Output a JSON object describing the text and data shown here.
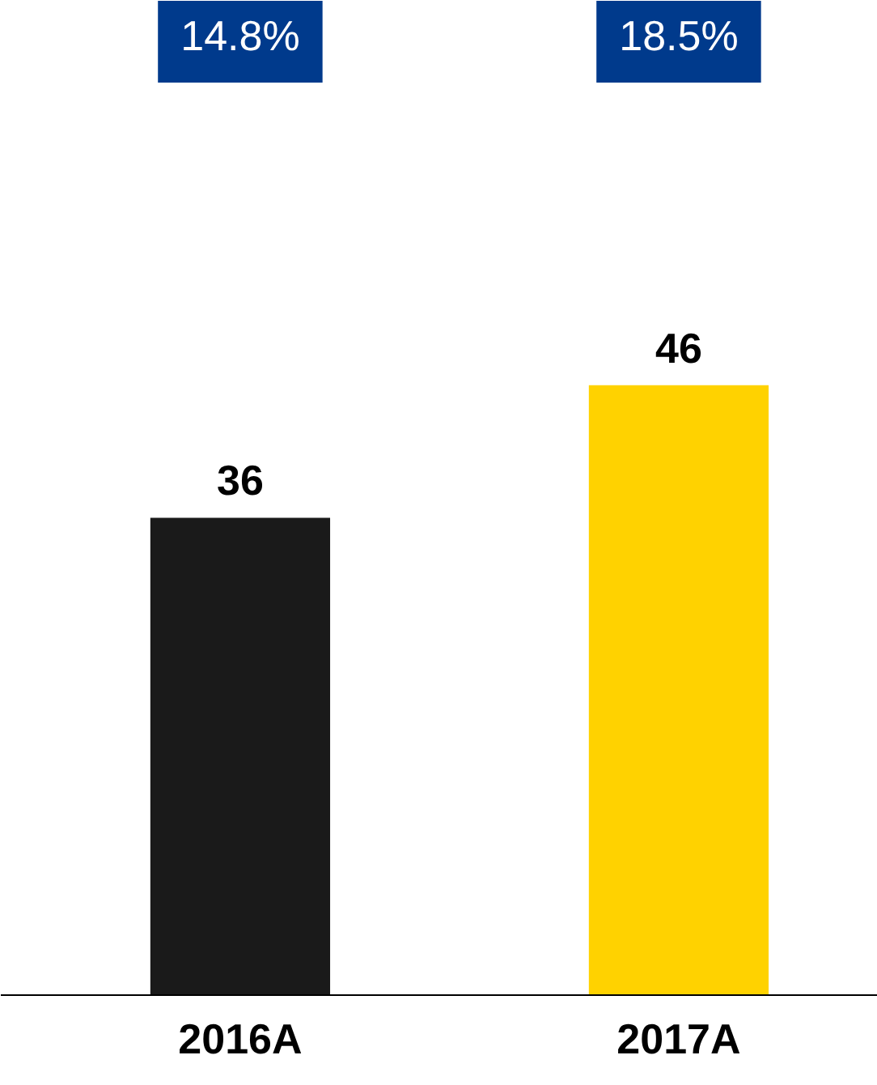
{
  "chart_data": {
    "type": "bar",
    "categories": [
      "2016A",
      "2017A"
    ],
    "values": [
      36,
      46
    ],
    "colors": [
      "#1a1a1a",
      "#ffd200"
    ],
    "data_labels": true,
    "tick_labels": "x",
    "grid": false,
    "annotations": [
      "14.8%",
      "18.5%"
    ]
  }
}
